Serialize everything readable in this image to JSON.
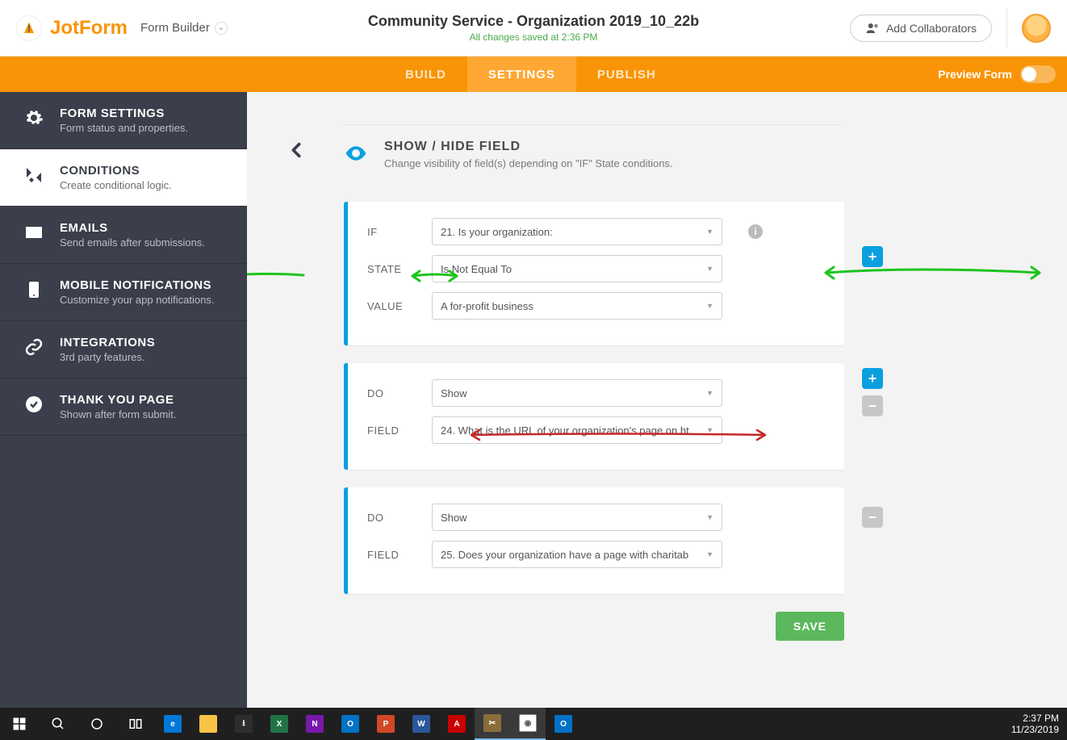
{
  "header": {
    "logo_text": "JotForm",
    "form_builder_label": "Form Builder",
    "title": "Community Service - Organization 2019_10_22b",
    "saved_text": "All changes saved at 2:36 PM",
    "collab_label": "Add Collaborators"
  },
  "tabs": {
    "build": "BUILD",
    "settings": "SETTINGS",
    "publish": "PUBLISH",
    "preview_label": "Preview Form"
  },
  "sidebar": {
    "items": [
      {
        "title": "FORM SETTINGS",
        "sub": "Form status and properties."
      },
      {
        "title": "CONDITIONS",
        "sub": "Create conditional logic."
      },
      {
        "title": "EMAILS",
        "sub": "Send emails after submissions."
      },
      {
        "title": "MOBILE NOTIFICATIONS",
        "sub": "Customize your app notifications."
      },
      {
        "title": "INTEGRATIONS",
        "sub": "3rd party features."
      },
      {
        "title": "THANK YOU PAGE",
        "sub": "Shown after form submit."
      }
    ]
  },
  "section": {
    "heading": "SHOW / HIDE FIELD",
    "desc": "Change visibility of field(s) depending on \"IF\" State conditions."
  },
  "condition": {
    "labels": {
      "if": "IF",
      "state": "STATE",
      "value": "VALUE",
      "do": "DO",
      "field": "FIELD"
    },
    "if_value": "21. Is your organization:",
    "state_value": "Is Not Equal To",
    "value_value": "A for-profit business",
    "actions": [
      {
        "do": "Show",
        "field": "24. What is the URL of your organization's page on ht"
      },
      {
        "do": "Show",
        "field": "25. Does your organization have a page with charitab"
      }
    ]
  },
  "buttons": {
    "save": "SAVE"
  },
  "taskbar": {
    "time": "2:37 PM",
    "date": "11/23/2019",
    "apps": [
      {
        "name": "edge",
        "color": "#0078d7",
        "glyph": "e"
      },
      {
        "name": "explorer",
        "color": "#f8c445",
        "glyph": ""
      },
      {
        "name": "store",
        "color": "#2d2d2d",
        "glyph": "⭳"
      },
      {
        "name": "excel",
        "color": "#217346",
        "glyph": "X"
      },
      {
        "name": "onenote",
        "color": "#7719aa",
        "glyph": "N"
      },
      {
        "name": "outlook",
        "color": "#0072c6",
        "glyph": "O"
      },
      {
        "name": "powerpoint",
        "color": "#d24726",
        "glyph": "P"
      },
      {
        "name": "word",
        "color": "#2b579a",
        "glyph": "W"
      },
      {
        "name": "acrobat",
        "color": "#c80000",
        "glyph": "A"
      },
      {
        "name": "snip",
        "color": "#8a6d3b",
        "glyph": "✂"
      },
      {
        "name": "chrome",
        "color": "#ffffff",
        "glyph": "◉"
      },
      {
        "name": "outlook2",
        "color": "#0072c6",
        "glyph": "O"
      }
    ]
  },
  "colors": {
    "orange": "#f89406",
    "orange_light": "#ffa733",
    "sidebar_bg": "#3a3f4b",
    "accent_blue": "#0aa0e0",
    "save_green": "#5cb85c",
    "arrow_green": "#1ec41e",
    "arrow_red": "#c62828"
  }
}
